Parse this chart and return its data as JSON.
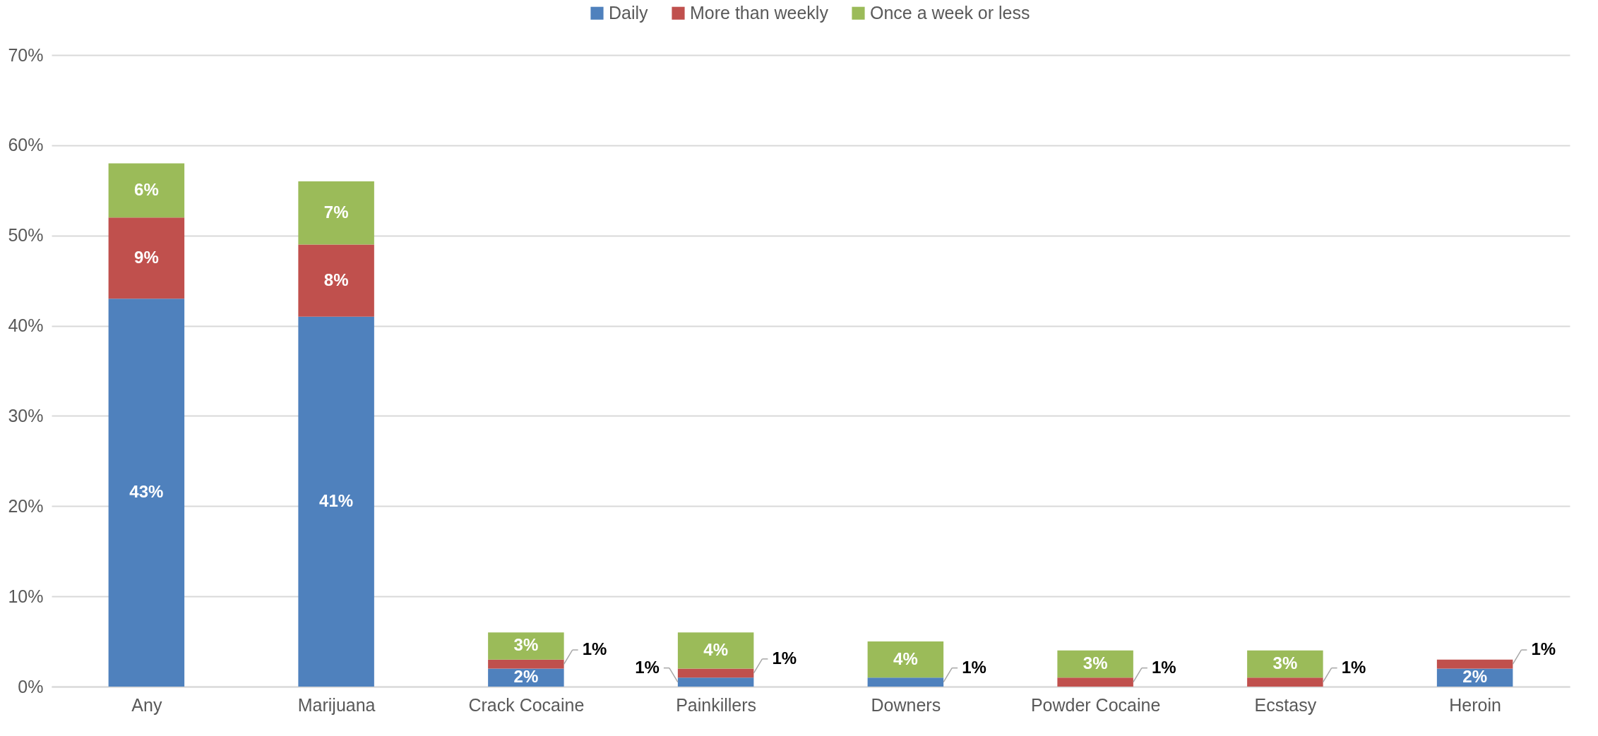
{
  "chart_data": {
    "type": "bar",
    "stacked": true,
    "categories": [
      "Any",
      "Marijuana",
      "Crack Cocaine",
      "Painkillers",
      "Downers",
      "Powder Cocaine",
      "Ecstasy",
      "Heroin"
    ],
    "series": [
      {
        "name": "Daily",
        "color": "#4f81bd",
        "values": [
          43,
          41,
          2,
          1,
          1,
          null,
          null,
          2
        ],
        "value_labels": [
          "43%",
          "41%",
          "2%",
          "1%",
          "1%",
          null,
          null,
          "2%"
        ]
      },
      {
        "name": "More than weekly",
        "color": "#c0504d",
        "values": [
          9,
          8,
          1,
          1,
          null,
          1,
          1,
          1
        ],
        "value_labels": [
          "9%",
          "8%",
          "1%",
          "1%",
          null,
          "1%",
          "1%",
          "1%"
        ]
      },
      {
        "name": "Once a week or less",
        "color": "#9bbb59",
        "values": [
          6,
          7,
          3,
          4,
          4,
          3,
          3,
          null
        ],
        "value_labels": [
          "6%",
          "7%",
          "3%",
          "4%",
          "4%",
          "3%",
          "3%",
          null
        ]
      }
    ],
    "ylim": [
      0,
      70
    ],
    "yticks": [
      {
        "value": 0,
        "label": "0%"
      },
      {
        "value": 10,
        "label": "10%"
      },
      {
        "value": 20,
        "label": "20%"
      },
      {
        "value": 30,
        "label": "30%"
      },
      {
        "value": 40,
        "label": "40%"
      },
      {
        "value": 50,
        "label": "50%"
      },
      {
        "value": 60,
        "label": "60%"
      },
      {
        "value": 70,
        "label": "70%"
      }
    ],
    "grid": "y",
    "legend": "top"
  }
}
